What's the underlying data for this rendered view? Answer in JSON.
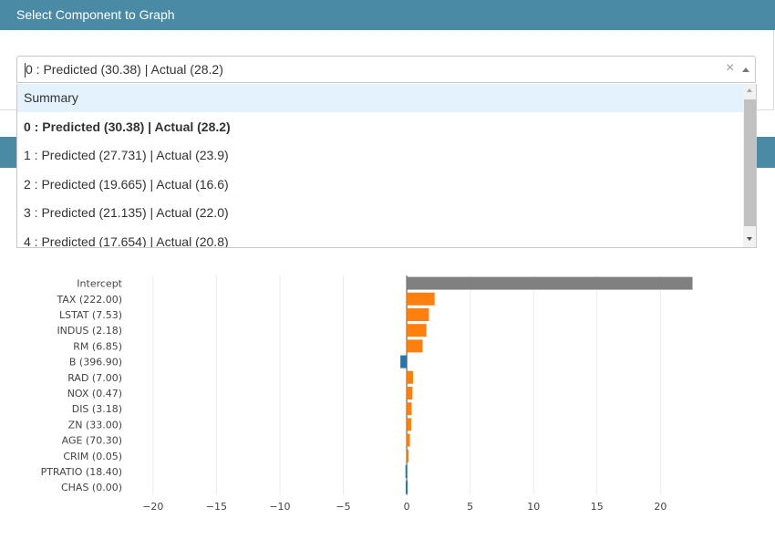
{
  "header": {
    "title": "Select Component to Graph"
  },
  "select": {
    "value": "0 : Predicted (30.38) | Actual (28.2)",
    "clear_icon": "×"
  },
  "dropdown": {
    "options": [
      {
        "label": "Summary",
        "state": "focused"
      },
      {
        "label": "0 : Predicted (30.38) | Actual (28.2)",
        "state": "selected"
      },
      {
        "label": "1 : Predicted (27.731) | Actual (23.9)",
        "state": ""
      },
      {
        "label": "2 : Predicted (19.665) | Actual (16.6)",
        "state": ""
      },
      {
        "label": "3 : Predicted (21.135) | Actual (22.0)",
        "state": ""
      },
      {
        "label": "4 : Predicted (17.654) | Actual (20.8)",
        "state": ""
      }
    ]
  },
  "colors": {
    "header_bg": "#4a8aa4",
    "positive": "#ff7f0e",
    "negative": "#1f77b4",
    "intercept": "#808080"
  },
  "chart_data": {
    "type": "bar",
    "orientation": "horizontal",
    "categories": [
      "Intercept",
      "TAX (222.00)",
      "LSTAT (7.53)",
      "INDUS (2.18)",
      "RM (6.85)",
      "B (396.90)",
      "RAD (7.00)",
      "NOX (0.47)",
      "DIS (3.18)",
      "ZN (33.00)",
      "AGE (70.30)",
      "CRIM (0.05)",
      "PTRATIO (18.40)",
      "CHAS (0.00)"
    ],
    "values": [
      22.53,
      2.2,
      1.75,
      1.55,
      1.25,
      -0.5,
      0.5,
      0.45,
      0.38,
      0.35,
      0.25,
      0.15,
      -0.1,
      -0.08
    ],
    "bar_colors": [
      "intercept",
      "pos",
      "pos",
      "pos",
      "pos",
      "neg",
      "pos",
      "pos",
      "pos",
      "pos",
      "pos",
      "pos",
      "neg",
      "neg"
    ],
    "xlim": [
      -22,
      24
    ],
    "xticks": [
      -20,
      -15,
      -10,
      -5,
      0,
      5,
      10,
      15,
      20
    ],
    "xtick_labels": [
      "−20",
      "−15",
      "−10",
      "−5",
      "0",
      "5",
      "10",
      "15",
      "20"
    ],
    "grid": true,
    "title": "",
    "xlabel": "",
    "ylabel": ""
  }
}
